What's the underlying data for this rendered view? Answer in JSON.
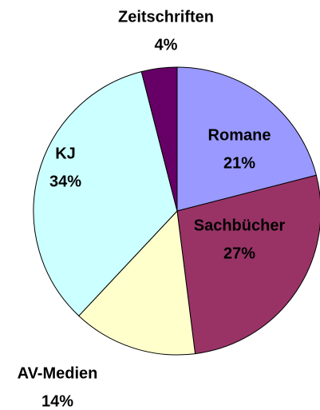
{
  "chart_data": {
    "type": "pie",
    "categories": [
      "Romane",
      "Sachbücher",
      "AV-Medien",
      "KJ",
      "Zeitschriften"
    ],
    "values": [
      21,
      27,
      14,
      34,
      4
    ],
    "value_labels": [
      "21%",
      "27%",
      "14%",
      "34%",
      "4%"
    ],
    "colors": [
      "#9999ff",
      "#993366",
      "#ffffcc",
      "#ccffff",
      "#660066"
    ]
  }
}
